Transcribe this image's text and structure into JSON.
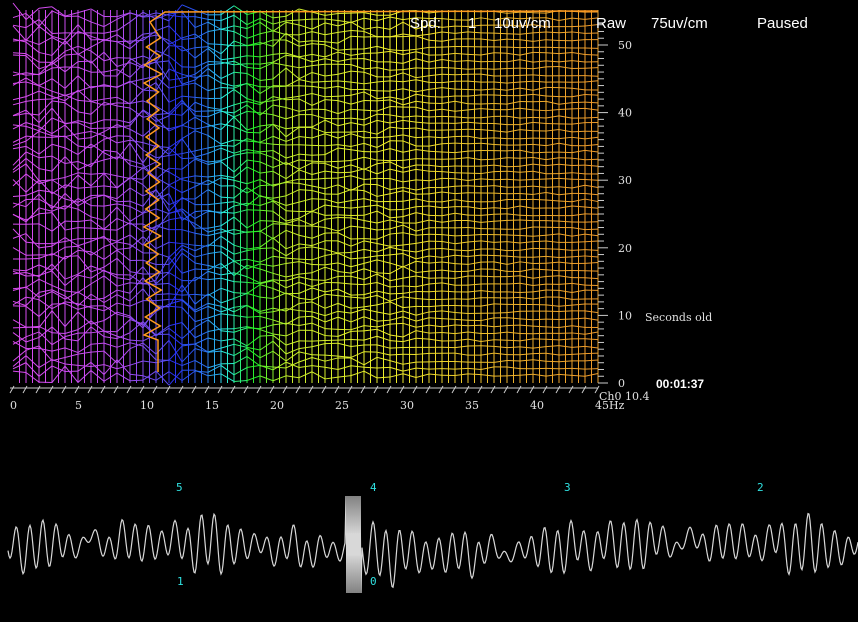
{
  "status": {
    "items": [
      "Spd:",
      "1",
      "10uv/cm",
      "Raw",
      "75uv/cm",
      "Paused"
    ]
  },
  "spectrogram": {
    "x_ticks": [
      "0",
      "5",
      "10",
      "15",
      "20",
      "25",
      "30",
      "35",
      "40",
      "45Hz"
    ],
    "y_ticks": [
      "0",
      "10",
      "20",
      "30",
      "40",
      "50"
    ],
    "y_label": "Seconds old",
    "channel": "Ch0",
    "peak": "10.4",
    "elapsed": "00:01:37"
  },
  "waveform": {
    "markers": [
      "5",
      "4",
      "3",
      "2",
      "1",
      "0"
    ]
  }
}
